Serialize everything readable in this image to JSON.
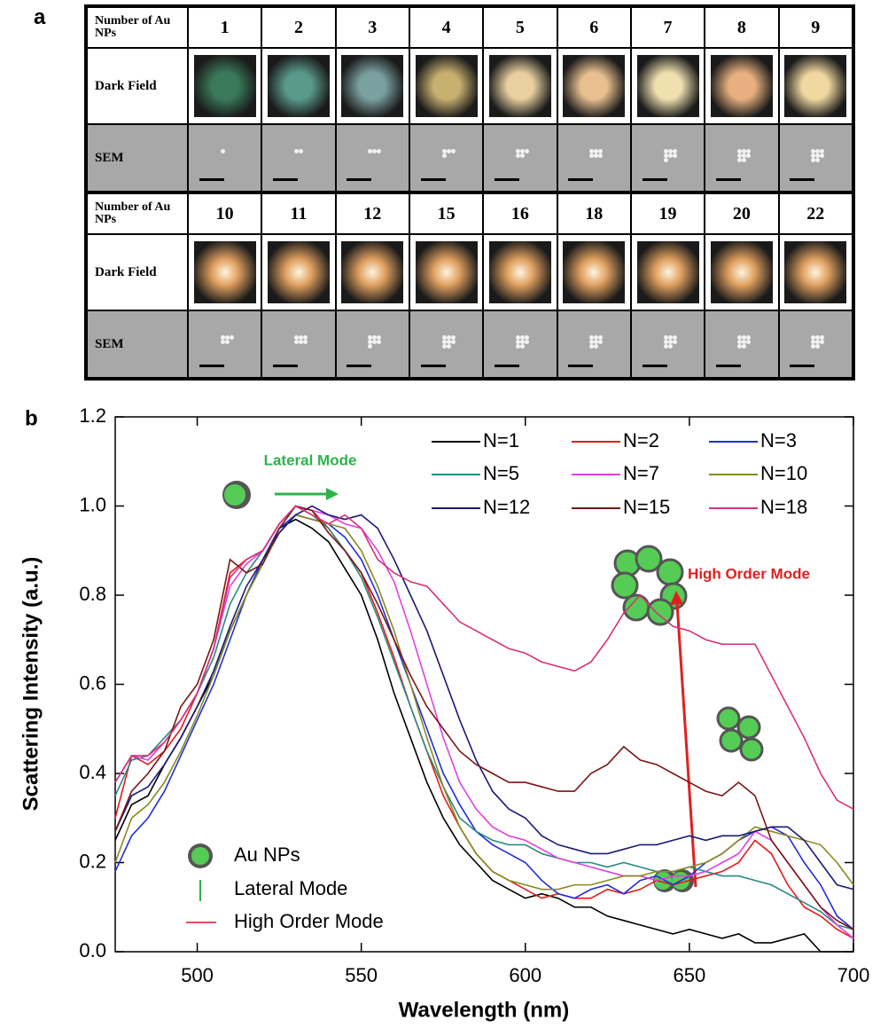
{
  "panel_labels": [
    "a",
    "b"
  ],
  "table": {
    "blocks": [
      {
        "header": "Number of Au NPs",
        "counts": [
          1,
          2,
          3,
          4,
          5,
          6,
          7,
          8,
          9
        ],
        "rows": [
          "Dark Field",
          "SEM"
        ]
      },
      {
        "header": "Number of Au NPs",
        "counts": [
          10,
          11,
          12,
          15,
          16,
          18,
          19,
          20,
          22
        ],
        "rows": [
          "Dark Field",
          "SEM"
        ]
      }
    ]
  },
  "chart_data": {
    "type": "line",
    "x_label": "Wavelength (nm)",
    "y_label": "Scattering Intensity (a.u.)",
    "xlim": [
      475,
      700
    ],
    "ylim": [
      0,
      1.2
    ],
    "xticks": [
      500,
      550,
      600,
      650,
      700
    ],
    "yticks": [
      {
        "value": 0,
        "label": "0.0"
      },
      0.2,
      0.4,
      0.6,
      0.8,
      {
        "value": 1,
        "label": "1.0"
      },
      1.2
    ],
    "legend": "upper right",
    "annotations": [
      "Lateral Mode",
      "High Order Mode"
    ],
    "key": [
      "Au NPs",
      "Lateral Mode",
      "High Order Mode"
    ],
    "x": [
      475,
      480,
      485,
      490,
      495,
      500,
      505,
      510,
      515,
      520,
      525,
      530,
      535,
      540,
      545,
      550,
      555,
      560,
      565,
      570,
      575,
      580,
      585,
      590,
      595,
      600,
      605,
      610,
      615,
      620,
      625,
      630,
      635,
      640,
      645,
      650,
      655,
      660,
      665,
      670,
      675,
      680,
      685,
      690,
      695,
      700
    ],
    "series": [
      {
        "name": "N=1",
        "color": "#000000",
        "values": [
          0.25,
          0.33,
          0.35,
          0.42,
          0.48,
          0.55,
          0.62,
          0.72,
          0.8,
          0.88,
          0.95,
          0.97,
          0.95,
          0.92,
          0.86,
          0.8,
          0.7,
          0.58,
          0.48,
          0.38,
          0.3,
          0.24,
          0.2,
          0.16,
          0.14,
          0.12,
          0.13,
          0.12,
          0.1,
          0.1,
          0.08,
          0.07,
          0.06,
          0.05,
          0.04,
          0.05,
          0.04,
          0.03,
          0.04,
          0.02,
          0.02,
          0.03,
          0.04,
          0.0,
          0.0,
          0.0
        ]
      },
      {
        "name": "N=2",
        "color": "#e41a1c",
        "values": [
          0.3,
          0.44,
          0.42,
          0.45,
          0.5,
          0.58,
          0.68,
          0.85,
          0.88,
          0.9,
          0.96,
          1.0,
          0.99,
          0.95,
          0.9,
          0.85,
          0.76,
          0.66,
          0.55,
          0.45,
          0.35,
          0.28,
          0.22,
          0.18,
          0.16,
          0.14,
          0.12,
          0.13,
          0.12,
          0.12,
          0.14,
          0.13,
          0.14,
          0.16,
          0.15,
          0.16,
          0.17,
          0.18,
          0.2,
          0.25,
          0.22,
          0.15,
          0.1,
          0.08,
          0.05,
          0.03
        ]
      },
      {
        "name": "N=3",
        "color": "#1f2fd8",
        "values": [
          0.18,
          0.26,
          0.3,
          0.36,
          0.44,
          0.52,
          0.6,
          0.7,
          0.8,
          0.88,
          0.95,
          0.98,
          0.97,
          0.96,
          0.93,
          0.88,
          0.8,
          0.7,
          0.6,
          0.5,
          0.4,
          0.33,
          0.27,
          0.24,
          0.22,
          0.2,
          0.16,
          0.13,
          0.12,
          0.14,
          0.15,
          0.13,
          0.16,
          0.17,
          0.15,
          0.17,
          0.2,
          0.22,
          0.25,
          0.27,
          0.28,
          0.26,
          0.2,
          0.15,
          0.08,
          0.05
        ]
      },
      {
        "name": "N=5",
        "color": "#2a8a80",
        "values": [
          0.35,
          0.43,
          0.44,
          0.48,
          0.52,
          0.58,
          0.66,
          0.78,
          0.85,
          0.9,
          0.96,
          1.0,
          0.98,
          0.95,
          0.9,
          0.84,
          0.75,
          0.65,
          0.55,
          0.45,
          0.37,
          0.3,
          0.27,
          0.25,
          0.24,
          0.24,
          0.22,
          0.21,
          0.2,
          0.2,
          0.19,
          0.2,
          0.19,
          0.18,
          0.18,
          0.19,
          0.18,
          0.17,
          0.17,
          0.16,
          0.15,
          0.13,
          0.11,
          0.09,
          0.06,
          0.05
        ]
      },
      {
        "name": "N=7",
        "color": "#e040e0",
        "values": [
          0.38,
          0.44,
          0.43,
          0.47,
          0.52,
          0.58,
          0.68,
          0.82,
          0.87,
          0.9,
          0.96,
          1.0,
          0.99,
          0.98,
          0.96,
          0.95,
          0.9,
          0.83,
          0.72,
          0.6,
          0.48,
          0.38,
          0.32,
          0.28,
          0.26,
          0.25,
          0.23,
          0.21,
          0.2,
          0.19,
          0.18,
          0.17,
          0.17,
          0.16,
          0.17,
          0.17,
          0.18,
          0.2,
          0.22,
          0.27,
          0.25,
          0.2,
          0.15,
          0.1,
          0.06,
          0.03
        ]
      },
      {
        "name": "N=10",
        "color": "#8a8a20",
        "values": [
          0.2,
          0.3,
          0.33,
          0.38,
          0.45,
          0.53,
          0.62,
          0.72,
          0.8,
          0.87,
          0.94,
          0.98,
          0.97,
          0.96,
          0.95,
          0.9,
          0.82,
          0.72,
          0.6,
          0.48,
          0.37,
          0.28,
          0.22,
          0.18,
          0.16,
          0.15,
          0.14,
          0.14,
          0.15,
          0.15,
          0.16,
          0.17,
          0.17,
          0.18,
          0.18,
          0.19,
          0.2,
          0.22,
          0.25,
          0.28,
          0.27,
          0.26,
          0.25,
          0.24,
          0.2,
          0.15
        ]
      },
      {
        "name": "N=12",
        "color": "#1a1a7a",
        "values": [
          0.27,
          0.35,
          0.37,
          0.42,
          0.48,
          0.55,
          0.63,
          0.73,
          0.82,
          0.88,
          0.94,
          0.98,
          1.0,
          0.98,
          0.97,
          0.98,
          0.95,
          0.88,
          0.8,
          0.72,
          0.62,
          0.52,
          0.43,
          0.36,
          0.32,
          0.3,
          0.26,
          0.24,
          0.23,
          0.22,
          0.22,
          0.23,
          0.24,
          0.24,
          0.25,
          0.26,
          0.25,
          0.26,
          0.26,
          0.27,
          0.28,
          0.28,
          0.25,
          0.2,
          0.15,
          0.14
        ]
      },
      {
        "name": "N=15",
        "color": "#7a1515",
        "values": [
          0.27,
          0.36,
          0.4,
          0.45,
          0.55,
          0.6,
          0.7,
          0.88,
          0.85,
          0.87,
          0.95,
          1.0,
          0.99,
          0.94,
          0.9,
          0.85,
          0.78,
          0.7,
          0.62,
          0.55,
          0.5,
          0.45,
          0.42,
          0.4,
          0.38,
          0.38,
          0.37,
          0.36,
          0.36,
          0.4,
          0.42,
          0.46,
          0.43,
          0.42,
          0.4,
          0.38,
          0.36,
          0.35,
          0.38,
          0.35,
          0.25,
          0.2,
          0.15,
          0.1,
          0.07,
          0.05
        ]
      },
      {
        "name": "N=18",
        "color": "#d8307a",
        "values": [
          0.38,
          0.44,
          0.44,
          0.47,
          0.52,
          0.58,
          0.68,
          0.84,
          0.88,
          0.9,
          0.96,
          1.0,
          0.98,
          0.96,
          0.98,
          0.95,
          0.88,
          0.85,
          0.83,
          0.82,
          0.78,
          0.74,
          0.72,
          0.7,
          0.68,
          0.67,
          0.65,
          0.64,
          0.63,
          0.65,
          0.7,
          0.76,
          0.8,
          0.76,
          0.73,
          0.72,
          0.7,
          0.69,
          0.69,
          0.69,
          0.62,
          0.55,
          0.48,
          0.4,
          0.34,
          0.32
        ]
      }
    ]
  }
}
